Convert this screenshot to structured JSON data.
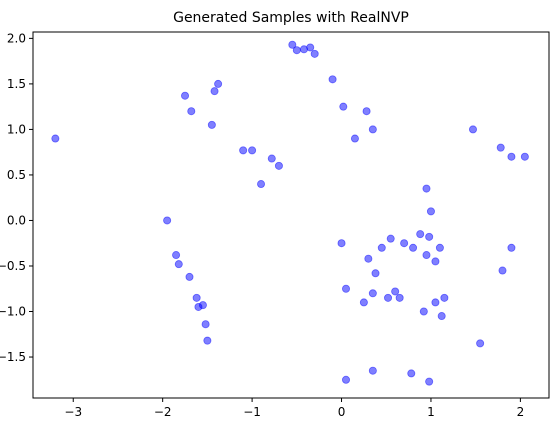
{
  "chart_data": {
    "type": "scatter",
    "title": "Generated Samples with RealNVP",
    "xlabel": "",
    "ylabel": "",
    "xlim": [
      -3.45,
      2.32
    ],
    "ylim": [
      -1.95,
      2.07
    ],
    "x_ticks": [
      -3,
      -2,
      -1,
      0,
      1,
      2
    ],
    "y_ticks": [
      -1.5,
      -1.0,
      -0.5,
      0.0,
      0.5,
      1.0,
      1.5,
      2.0
    ],
    "x_tick_labels": [
      "−3",
      "−2",
      "−1",
      "0",
      "1",
      "2"
    ],
    "y_tick_labels": [
      "−1.5",
      "−1.0",
      "−0.5",
      "0.0",
      "0.5",
      "1.0",
      "1.5",
      "2.0"
    ],
    "grid": false,
    "marker_color": "#0000ff",
    "marker_alpha": 0.5,
    "series": [
      {
        "points": [
          [
            -3.2,
            0.9
          ],
          [
            -1.95,
            0.0
          ],
          [
            -1.5,
            -1.32
          ],
          [
            -1.52,
            -1.14
          ],
          [
            -1.75,
            1.37
          ],
          [
            -1.68,
            1.2
          ],
          [
            -1.82,
            -0.48
          ],
          [
            -1.85,
            -0.38
          ],
          [
            -1.7,
            -0.62
          ],
          [
            -1.62,
            -0.85
          ],
          [
            -1.6,
            -0.95
          ],
          [
            -1.55,
            -0.93
          ],
          [
            -1.45,
            1.05
          ],
          [
            -1.42,
            1.42
          ],
          [
            -1.38,
            1.5
          ],
          [
            -1.1,
            0.77
          ],
          [
            -1.0,
            0.77
          ],
          [
            -0.78,
            0.68
          ],
          [
            -0.7,
            0.6
          ],
          [
            -0.9,
            0.4
          ],
          [
            -0.55,
            1.93
          ],
          [
            -0.5,
            1.87
          ],
          [
            -0.42,
            1.88
          ],
          [
            -0.35,
            1.9
          ],
          [
            -0.3,
            1.83
          ],
          [
            0.0,
            -0.25
          ],
          [
            0.05,
            -0.75
          ],
          [
            0.25,
            -0.9
          ],
          [
            0.35,
            -0.8
          ],
          [
            0.3,
            -0.42
          ],
          [
            0.45,
            -0.3
          ],
          [
            0.38,
            -0.58
          ],
          [
            0.52,
            -0.85
          ],
          [
            0.65,
            -0.85
          ],
          [
            0.8,
            -0.3
          ],
          [
            0.95,
            0.35
          ],
          [
            1.0,
            0.1
          ],
          [
            0.88,
            -0.15
          ],
          [
            0.98,
            -0.18
          ],
          [
            0.95,
            -0.38
          ],
          [
            1.05,
            -0.45
          ],
          [
            1.1,
            -0.3
          ],
          [
            0.92,
            -1.0
          ],
          [
            1.05,
            -0.9
          ],
          [
            1.12,
            -1.05
          ],
          [
            1.47,
            1.0
          ],
          [
            1.78,
            0.8
          ],
          [
            1.9,
            0.7
          ],
          [
            2.05,
            0.7
          ],
          [
            1.15,
            -0.85
          ],
          [
            0.05,
            -1.75
          ],
          [
            0.98,
            -1.77
          ],
          [
            0.78,
            -1.68
          ],
          [
            0.35,
            -1.65
          ],
          [
            1.55,
            -1.35
          ],
          [
            1.8,
            -0.55
          ],
          [
            1.9,
            -0.3
          ],
          [
            0.35,
            1.0
          ],
          [
            0.28,
            1.2
          ],
          [
            0.6,
            -0.78
          ],
          [
            0.02,
            1.25
          ],
          [
            -0.1,
            1.55
          ],
          [
            0.15,
            0.9
          ],
          [
            0.7,
            -0.25
          ],
          [
            0.55,
            -0.2
          ]
        ]
      }
    ]
  }
}
